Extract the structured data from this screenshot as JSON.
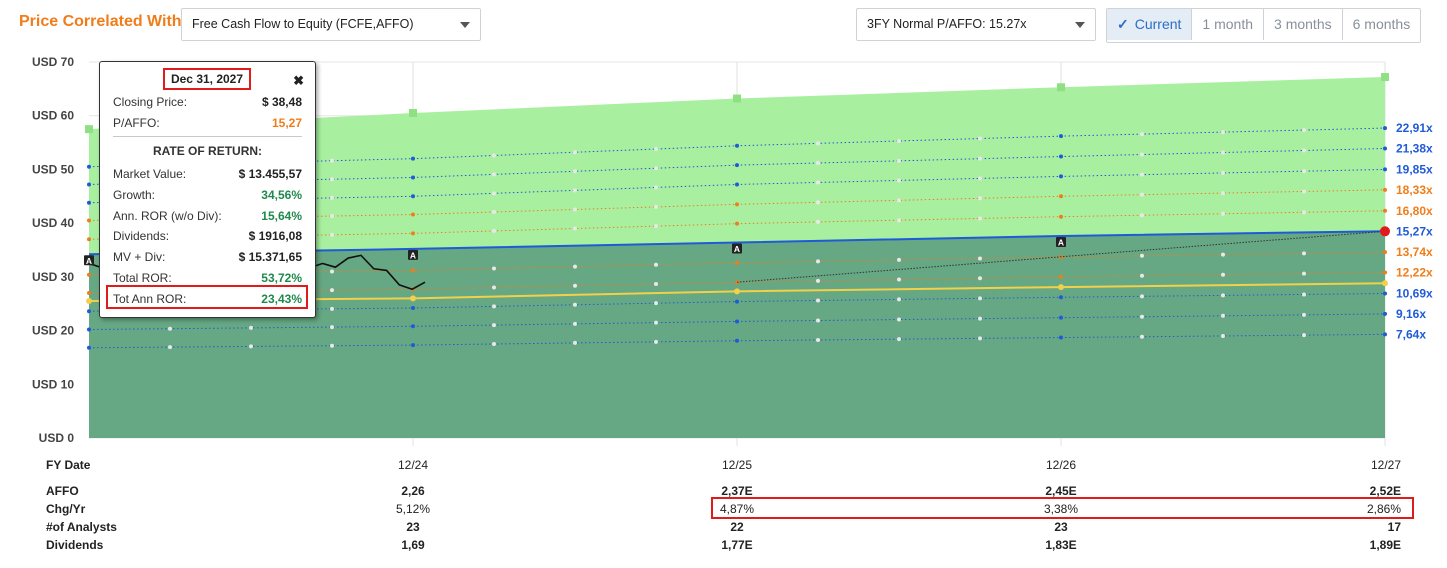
{
  "header": {
    "title": "Price Correlated With",
    "metric_select": "Free Cash Flow to Equity (FCFE,AFFO)",
    "pe_select": "3FY Normal P/AFFO: 15.27x",
    "tabs": [
      "Current",
      "1 month",
      "3 months",
      "6 months"
    ],
    "active_tab": "Current"
  },
  "tooltip": {
    "date": "Dec 31, 2027",
    "close_icon": "close-icon",
    "rows_top": [
      {
        "label": "Closing Price:",
        "value": "$ 38,48",
        "color": "#222222"
      },
      {
        "label": "P/AFFO:",
        "value": "15,27",
        "color": "#f07d1a"
      }
    ],
    "section": "RATE OF RETURN:",
    "rows": [
      {
        "label": "Market Value:",
        "value": "$ 13.455,57",
        "color": "#222222"
      },
      {
        "label": "Growth:",
        "value": "34,56%",
        "color": "#1f8a4c"
      },
      {
        "label": "Ann. ROR (w/o Div):",
        "value": "15,64%",
        "color": "#1f8a4c"
      },
      {
        "label": "Dividends:",
        "value": "$ 1916,08",
        "color": "#222222"
      },
      {
        "label": "MV + Div:",
        "value": "$ 15.371,65",
        "color": "#222222"
      },
      {
        "label": "Total ROR:",
        "value": "53,72%",
        "color": "#1f8a4c"
      },
      {
        "label": "Tot Ann ROR:",
        "value": "23,43%",
        "color": "#1f8a4c"
      }
    ]
  },
  "chart_data": {
    "type": "area",
    "y_axis": {
      "min": 0,
      "max": 70,
      "ticks": [
        0,
        10,
        20,
        30,
        40,
        50,
        60,
        70
      ],
      "tick_prefix": "USD "
    },
    "x_axis": {
      "categories": [
        "12/24",
        "12/25",
        "12/26",
        "12/27"
      ],
      "start": "12/23",
      "label": "FY Date"
    },
    "upper_area": {
      "x": [
        "12/23",
        "12/24",
        "12/25",
        "12/26",
        "12/27"
      ],
      "y": [
        57.5,
        60.5,
        63.2,
        65.3,
        67.2
      ],
      "color": "#a8f0a0"
    },
    "fair_value_line": {
      "x": [
        "12/23",
        "12/24",
        "12/25",
        "12/26",
        "12/27"
      ],
      "y": [
        34.2,
        35.2,
        36.4,
        37.6,
        38.5
      ],
      "color": "#1f5ad8",
      "area_color": "#66a883"
    },
    "normal_line": {
      "x": [
        "12/23",
        "12/24",
        "12/25",
        "12/26",
        "12/27"
      ],
      "y": [
        25.5,
        26.0,
        27.3,
        28.1,
        28.8
      ],
      "color": "#f2d04a"
    },
    "multiple_lines": [
      {
        "label": "22,91x",
        "color": "#1f5ad8",
        "y": [
          50.5,
          52.0,
          54.4,
          56.2,
          57.7
        ]
      },
      {
        "label": "21,38x",
        "color": "#1f5ad8",
        "y": [
          47.2,
          48.5,
          50.8,
          52.4,
          53.9
        ]
      },
      {
        "label": "19,85x",
        "color": "#1f5ad8",
        "y": [
          43.8,
          45.0,
          47.2,
          48.7,
          50.0
        ]
      },
      {
        "label": "18,33x",
        "color": "#f07d1a",
        "y": [
          40.5,
          41.6,
          43.5,
          45.0,
          46.2
        ]
      },
      {
        "label": "16,80x",
        "color": "#f07d1a",
        "y": [
          37.0,
          38.1,
          39.9,
          41.2,
          42.3
        ]
      },
      {
        "label": "13,74x",
        "color": "#f07d1a",
        "y": [
          30.4,
          31.2,
          32.6,
          33.7,
          34.6
        ]
      },
      {
        "label": "12,22x",
        "color": "#f07d1a",
        "y": [
          27.0,
          27.7,
          29.0,
          30.0,
          30.8
        ]
      },
      {
        "label": "10,69x",
        "color": "#1f5ad8",
        "y": [
          23.6,
          24.2,
          25.4,
          26.2,
          26.9
        ]
      },
      {
        "label": "9,16x",
        "color": "#1f5ad8",
        "y": [
          20.2,
          20.8,
          21.7,
          22.4,
          23.1
        ]
      },
      {
        "label": "7,64x",
        "color": "#1f5ad8",
        "y": [
          16.8,
          17.3,
          18.1,
          18.7,
          19.3
        ]
      }
    ],
    "current_label": {
      "label": "15,27x",
      "color": "#1f5ad8",
      "value": 38.48
    },
    "price_series": {
      "x": [
        2023.95,
        2024.0,
        2024.04,
        2024.08,
        2024.12,
        2024.16,
        2024.2,
        2024.24,
        2024.28,
        2024.32,
        2024.36,
        2024.4,
        2024.44,
        2024.48,
        2024.52,
        2024.56,
        2024.6,
        2024.64,
        2024.68,
        2024.72,
        2024.76,
        2024.8,
        2024.84,
        2024.88,
        2024.92,
        2024.96,
        2025.0
      ],
      "y": [
        32.5,
        31.5,
        30.8,
        31.5,
        32.5,
        33.8,
        31.5,
        32.0,
        31.0,
        29.5,
        28.5,
        30.2,
        31.5,
        32.0,
        31.8,
        32.8,
        31.0,
        31.7,
        32.5,
        31.8,
        33.5,
        34.0,
        31.5,
        31.2,
        28.5,
        27.7,
        29.0
      ],
      "color": "#111111"
    },
    "projection_line": {
      "x": [
        "12/25",
        "12/27"
      ],
      "y": [
        29.0,
        38.48
      ],
      "color": "#333333"
    },
    "annotations": [
      "A",
      "A",
      "A",
      "A"
    ]
  },
  "table": {
    "header_label": "FY Date",
    "columns": [
      "12/24",
      "12/25",
      "12/26",
      "12/27"
    ],
    "rows": [
      {
        "label": "AFFO",
        "bold": true,
        "values": [
          "2,26",
          "2,37E",
          "2,45E",
          "2,52E"
        ]
      },
      {
        "label": "Chg/Yr",
        "bold": false,
        "values": [
          "5,12%",
          "4,87%",
          "3,38%",
          "2,86%"
        ]
      },
      {
        "label": "#of Analysts",
        "bold": true,
        "values": [
          "23",
          "22",
          "23",
          "17"
        ]
      },
      {
        "label": "Dividends",
        "bold": true,
        "values": [
          "1,69",
          "1,77E",
          "1,83E",
          "1,89E"
        ]
      }
    ]
  }
}
